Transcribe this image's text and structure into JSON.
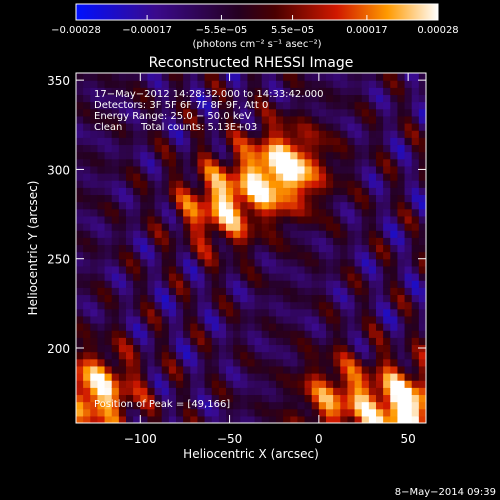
{
  "chart_data": {
    "type": "heatmap",
    "title": "Reconstructed RHESSI Image",
    "xlabel": "Heliocentric X (arcsec)",
    "ylabel": "Heliocentric Y (arcsec)",
    "xlim": [
      -136,
      60
    ],
    "ylim": [
      158,
      354
    ],
    "xticks": [
      -100,
      -50,
      0,
      50
    ],
    "xtick_labels": [
      "−100",
      "−50",
      "0",
      "50"
    ],
    "yticks": [
      200,
      250,
      300,
      350
    ],
    "ytick_labels": [
      "200",
      "250",
      "300",
      "350"
    ],
    "colorbar": {
      "range": [
        -0.00028,
        0.00028
      ],
      "ticks": [
        -0.00028,
        -0.00017,
        -5.5e-05,
        5.5e-05,
        0.00017,
        0.00028
      ],
      "tick_labels": [
        "−0.00028",
        "−0.00017",
        "−5.5e−05",
        "5.5e−05",
        "0.00017",
        "0.00028"
      ],
      "unit_label": "(photons cm⁻² s⁻¹ asec⁻²)"
    },
    "annotations": [
      "17−May−2012 14:28:32.000 to 14:33:42.000",
      "Detectors: 3F 5F 6F 7F 8F 9F, Att 0",
      "Energy Range: 25.0 − 50.0 keV",
      "Clean",
      "Total counts: 5.13E+03"
    ],
    "peak_label": "Position of Peak = [49,166]",
    "peak": [
      49,
      166
    ],
    "bright_sources": [
      {
        "x": -20,
        "y": 300,
        "strength": 1.0
      },
      {
        "x": -55,
        "y": 280,
        "strength": 0.75
      },
      {
        "x": -125,
        "y": 175,
        "strength": 0.85
      },
      {
        "x": 49,
        "y": 166,
        "strength": 1.0
      },
      {
        "x": 10,
        "y": 172,
        "strength": 0.6
      }
    ],
    "grid": false
  },
  "footer_date": "8−May−2014 09:39"
}
